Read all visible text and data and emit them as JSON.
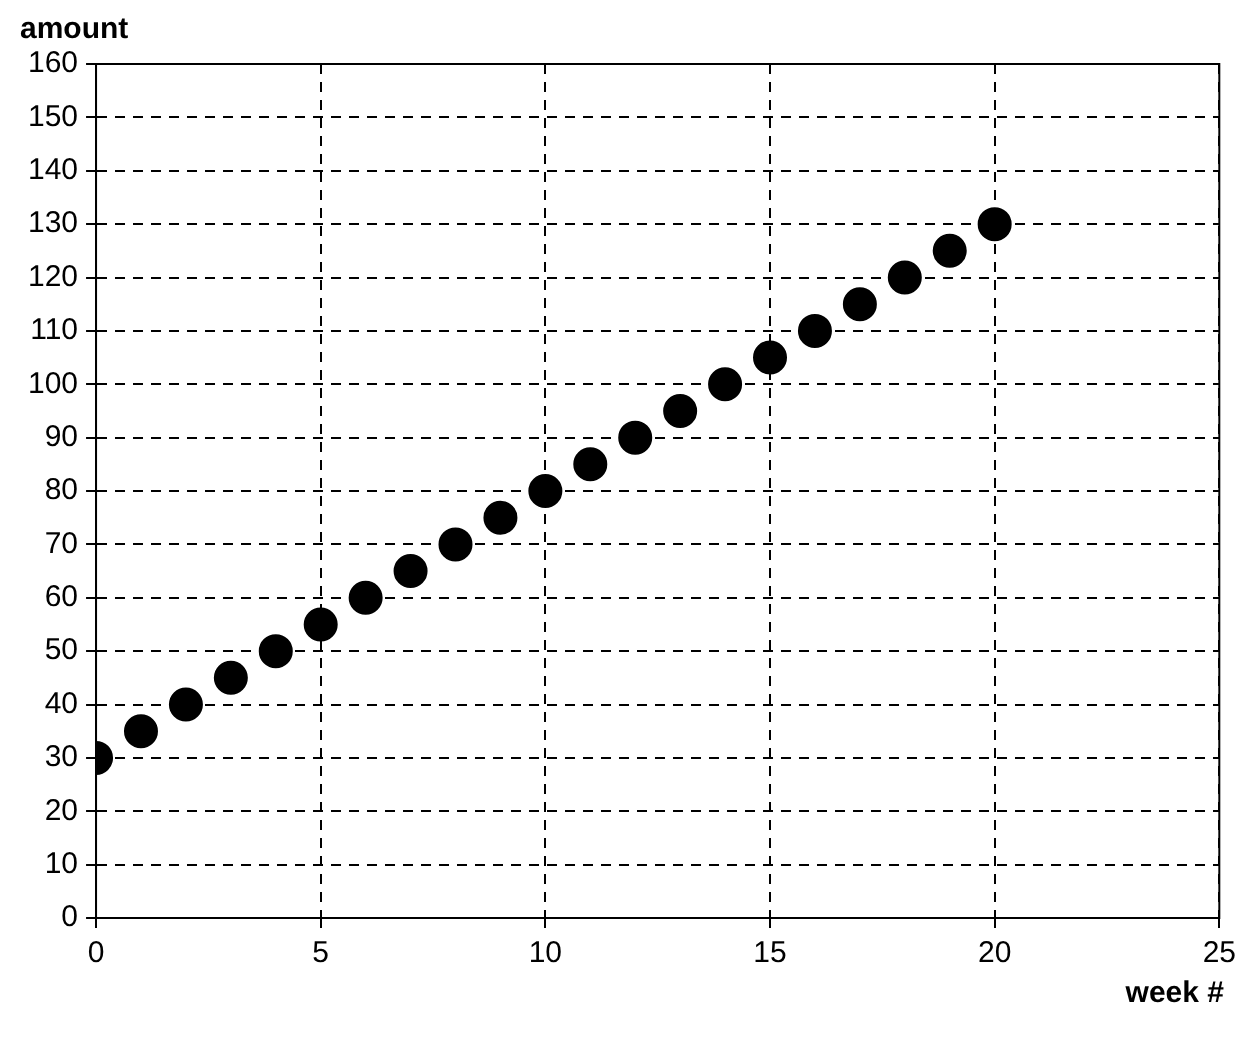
{
  "chart_data": {
    "type": "scatter",
    "xlabel": "week #",
    "ylabel": "amount",
    "x": [
      0,
      1,
      2,
      3,
      4,
      5,
      6,
      7,
      8,
      9,
      10,
      11,
      12,
      13,
      14,
      15,
      16,
      17,
      18,
      19,
      20
    ],
    "series": [
      {
        "color": "#000000",
        "values": [
          30,
          35,
          40,
          45,
          50,
          55,
          60,
          65,
          70,
          75,
          80,
          85,
          90,
          95,
          100,
          105,
          110,
          115,
          120,
          125,
          130
        ]
      }
    ],
    "xlim": [
      0,
      25
    ],
    "xticks": [
      0,
      5,
      10,
      15,
      20,
      25
    ],
    "ylim": [
      0,
      160
    ],
    "yticks": [
      0,
      10,
      20,
      30,
      40,
      50,
      60,
      70,
      80,
      90,
      100,
      110,
      120,
      130,
      140,
      150,
      160
    ],
    "grid": true,
    "legend": false,
    "marker": "circle"
  }
}
